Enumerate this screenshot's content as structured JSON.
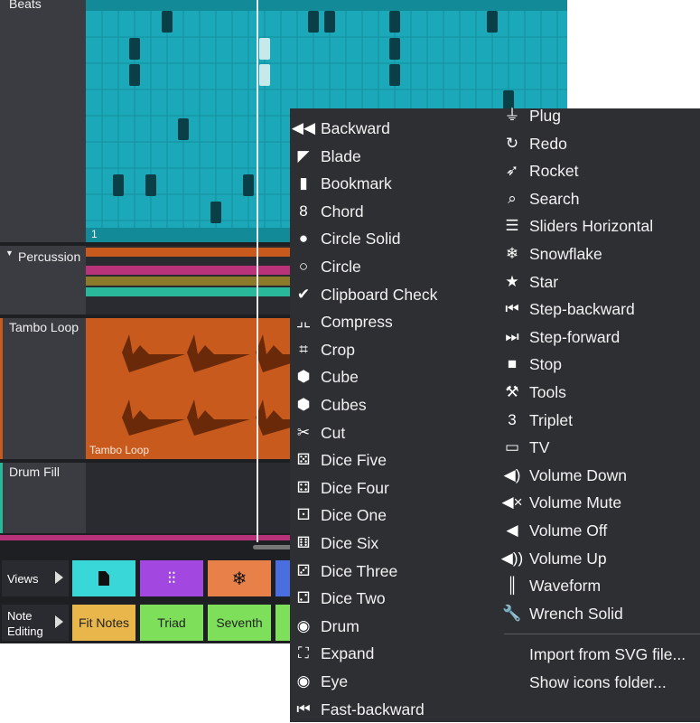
{
  "tracks": {
    "beats": "Beats",
    "beats_bar": "1",
    "percussion": "Percussion",
    "tambo": "Tambo Loop",
    "tambo_clip": "Tambo Loop",
    "drum_fill": "Drum Fill"
  },
  "rows": {
    "views_label": "Views",
    "note_editing_label": "Note\nEditing",
    "fit_notes": "Fit Notes",
    "triad": "Triad",
    "seventh": "Seventh"
  },
  "menu": {
    "left": [
      {
        "icon": "backward-icon",
        "glyph": "◀◀",
        "label": "Backward"
      },
      {
        "icon": "blade-icon",
        "glyph": "◤",
        "label": "Blade"
      },
      {
        "icon": "bookmark-icon",
        "glyph": "▮",
        "label": "Bookmark"
      },
      {
        "icon": "chord-icon",
        "glyph": "8",
        "label": "Chord"
      },
      {
        "icon": "circle-solid-icon",
        "glyph": "●",
        "label": "Circle Solid"
      },
      {
        "icon": "circle-icon",
        "glyph": "○",
        "label": "Circle"
      },
      {
        "icon": "clipboard-check-icon",
        "glyph": "✔",
        "label": "Clipboard Check"
      },
      {
        "icon": "compress-icon",
        "glyph": "⌟⌞",
        "label": "Compress"
      },
      {
        "icon": "crop-icon",
        "glyph": "⌗",
        "label": "Crop"
      },
      {
        "icon": "cube-icon",
        "glyph": "⬢",
        "label": "Cube"
      },
      {
        "icon": "cubes-icon",
        "glyph": "⬢",
        "label": "Cubes"
      },
      {
        "icon": "cut-icon",
        "glyph": "✂",
        "label": "Cut"
      },
      {
        "icon": "dice-five-icon",
        "glyph": "⚄",
        "label": "Dice Five"
      },
      {
        "icon": "dice-four-icon",
        "glyph": "⚃",
        "label": "Dice Four"
      },
      {
        "icon": "dice-one-icon",
        "glyph": "⚀",
        "label": "Dice One"
      },
      {
        "icon": "dice-six-icon",
        "glyph": "⚅",
        "label": "Dice Six"
      },
      {
        "icon": "dice-three-icon",
        "glyph": "⚂",
        "label": "Dice Three"
      },
      {
        "icon": "dice-two-icon",
        "glyph": "⚁",
        "label": "Dice Two"
      },
      {
        "icon": "drum-icon",
        "glyph": "◉",
        "label": "Drum"
      },
      {
        "icon": "expand-icon",
        "glyph": "⛶",
        "label": "Expand"
      },
      {
        "icon": "eye-icon",
        "glyph": "◉",
        "label": "Eye"
      },
      {
        "icon": "fast-backward-icon",
        "glyph": "⏮",
        "label": "Fast-backward"
      }
    ],
    "right": [
      {
        "icon": "plug-icon",
        "glyph": "⏚",
        "label": "Plug"
      },
      {
        "icon": "redo-icon",
        "glyph": "↻",
        "label": "Redo"
      },
      {
        "icon": "rocket-icon",
        "glyph": "➶",
        "label": "Rocket"
      },
      {
        "icon": "search-icon",
        "glyph": "⌕",
        "label": "Search"
      },
      {
        "icon": "sliders-horizontal-icon",
        "glyph": "☰",
        "label": "Sliders Horizontal"
      },
      {
        "icon": "snowflake-icon",
        "glyph": "❄",
        "label": "Snowflake"
      },
      {
        "icon": "star-icon",
        "glyph": "★",
        "label": "Star"
      },
      {
        "icon": "step-backward-icon",
        "glyph": "⏮",
        "label": "Step-backward"
      },
      {
        "icon": "step-forward-icon",
        "glyph": "⏭",
        "label": "Step-forward"
      },
      {
        "icon": "stop-icon",
        "glyph": "■",
        "label": "Stop"
      },
      {
        "icon": "tools-icon",
        "glyph": "⚒",
        "label": "Tools"
      },
      {
        "icon": "triplet-icon",
        "glyph": "3",
        "label": "Triplet"
      },
      {
        "icon": "tv-icon",
        "glyph": "▭",
        "label": "TV"
      },
      {
        "icon": "volume-down-icon",
        "glyph": "◀)",
        "label": "Volume Down"
      },
      {
        "icon": "volume-mute-icon",
        "glyph": "◀×",
        "label": "Volume Mute"
      },
      {
        "icon": "volume-off-icon",
        "glyph": "◀",
        "label": "Volume Off"
      },
      {
        "icon": "volume-up-icon",
        "glyph": "◀))",
        "label": "Volume Up"
      },
      {
        "icon": "waveform-icon",
        "glyph": "║",
        "label": "Waveform"
      },
      {
        "icon": "wrench-solid-icon",
        "glyph": "🔧",
        "label": "Wrench Solid"
      }
    ],
    "import_label": "Import from SVG file...",
    "show_folder_label": "Show icons folder..."
  },
  "colors": {
    "beats": "#1ba9b9",
    "tambo": "#c85a1e",
    "menu_bg": "#2e2f33",
    "views_file": "#3ad7d9",
    "views_sliders": "#a247e0",
    "views_snow": "#e8804a",
    "fit_notes": "#e8b64a",
    "triad": "#7ee05a",
    "seventh": "#7ee05a"
  }
}
